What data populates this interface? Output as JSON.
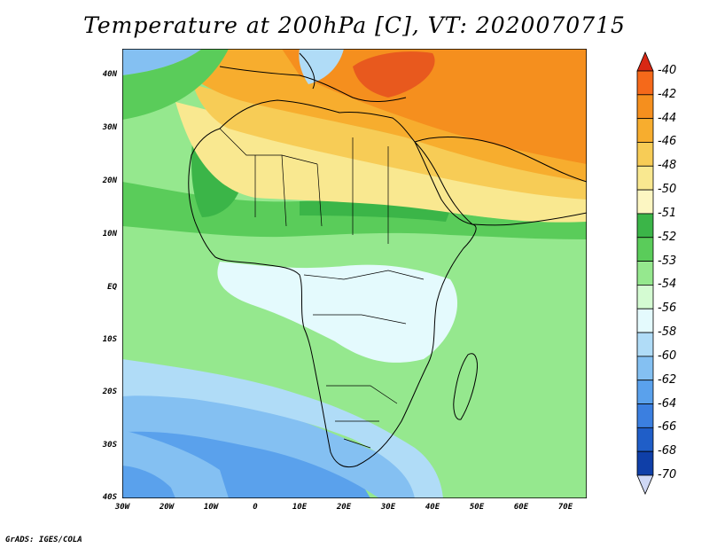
{
  "title": "Temperature at 200hPa [C], VT: 2020070715",
  "credit": "GrADS: IGES/COLA",
  "axes": {
    "y_ticks": [
      "40N",
      "30N",
      "20N",
      "10N",
      "EQ",
      "10S",
      "20S",
      "30S",
      "40S"
    ],
    "x_ticks": [
      "30W",
      "20W",
      "10W",
      "0",
      "10E",
      "20E",
      "30E",
      "40E",
      "50E",
      "60E",
      "70E"
    ]
  },
  "colorbar": {
    "labels": [
      "-40",
      "-42",
      "-44",
      "-46",
      "-48",
      "-50",
      "-51",
      "-52",
      "-53",
      "-54",
      "-56",
      "-58",
      "-60",
      "-62",
      "-64",
      "-66",
      "-68",
      "-70"
    ],
    "colors": [
      "#f4421c",
      "#f5691a",
      "#f58f1e",
      "#f7ad2e",
      "#f7cc56",
      "#f9e890",
      "#fcf6c2",
      "#3bb548",
      "#5acc5a",
      "#95e88e",
      "#d4fbd2",
      "#e4fafd",
      "#b0dcf7",
      "#84c0f2",
      "#5aa1ec",
      "#3b7fe0",
      "#1f5ec8",
      "#0f3fa8",
      "#0c1c7a"
    ],
    "top_arrow_color": "#d82814",
    "bottom_arrow_color": "#cfd8f5"
  },
  "map": {
    "colors": {
      "orange_dark": "#e8591e",
      "orange": "#f58f1e",
      "orange_light": "#f7ad2e",
      "yellow": "#f7cc56",
      "yellow_pale": "#f9e890",
      "green_dark": "#3bb548",
      "green": "#5acc5a",
      "green_light": "#95e88e",
      "green_pale": "#c2f5bc",
      "cyan_pale": "#e4fafd",
      "blue_light": "#b0dcf7",
      "blue": "#84c0f2",
      "blue_mid": "#5aa1ec",
      "coast": "#000000"
    }
  }
}
